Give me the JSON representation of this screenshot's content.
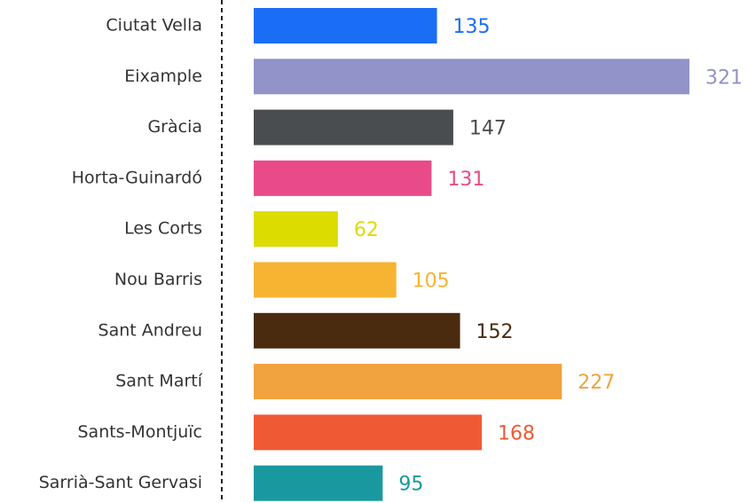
{
  "chart_data": {
    "type": "bar",
    "orientation": "horizontal",
    "categories": [
      "Ciutat Vella",
      "Eixample",
      "Gràcia",
      "Horta-Guinardó",
      "Les Corts",
      "Nou Barris",
      "Sant Andreu",
      "Sant Martí",
      "Sants-Montjuïc",
      "Sarrià-Sant Gervasi"
    ],
    "values": [
      135,
      321,
      147,
      131,
      62,
      105,
      152,
      227,
      168,
      95
    ],
    "colors": [
      "#1a6ef5",
      "#9193c9",
      "#4a4d4f",
      "#e94b8a",
      "#dcdc00",
      "#f7b432",
      "#4a2b10",
      "#f0a33e",
      "#ef5a35",
      "#1a98a0"
    ],
    "xlim": [
      0,
      350
    ]
  }
}
